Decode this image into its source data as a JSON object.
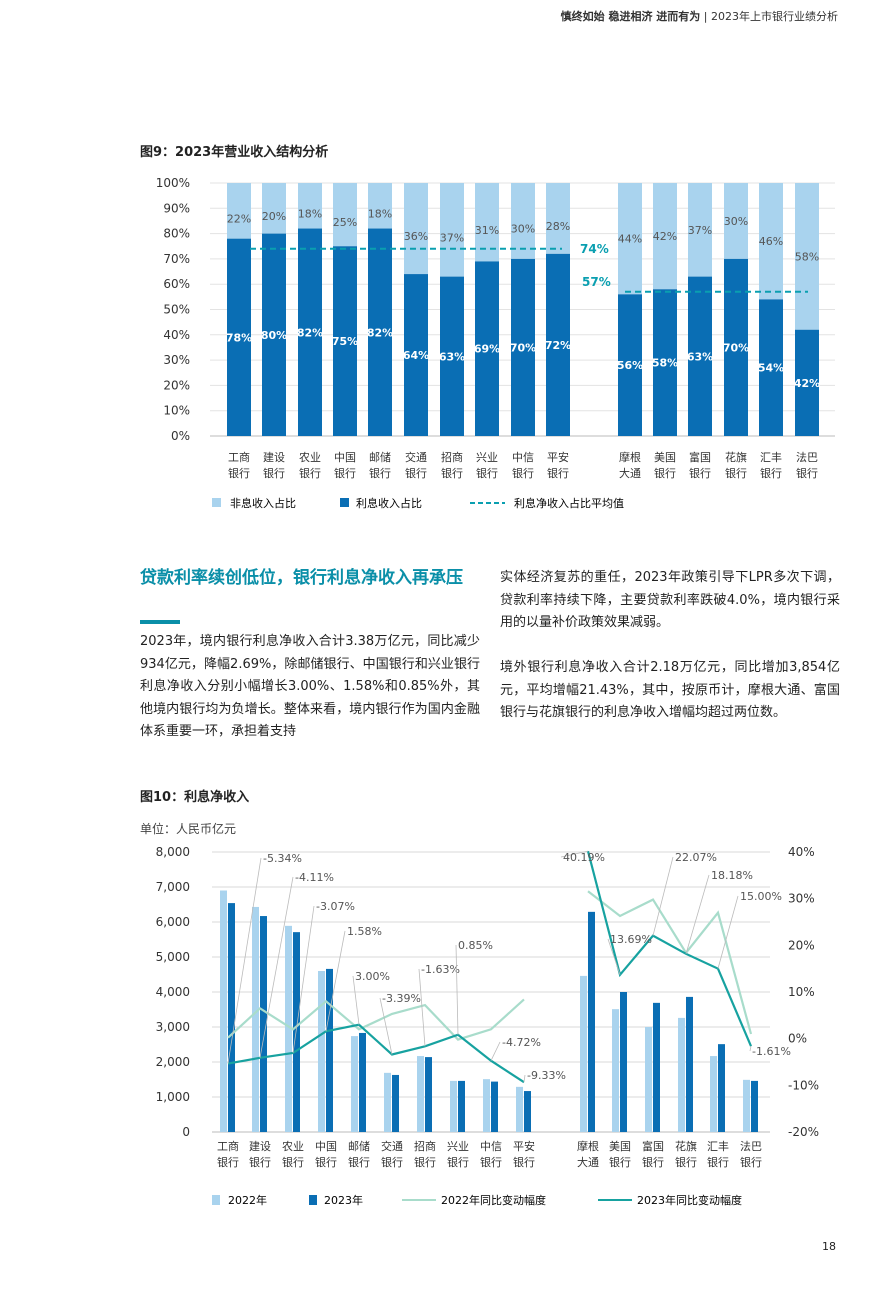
{
  "header": {
    "tagline": "慎终如始 稳进相济 进而有为",
    "divider": "|",
    "subtitle": "2023年上市银行业绩分析"
  },
  "fig9": {
    "title": "图9：2023年营业收入结构分析"
  },
  "section": {
    "heading": "贷款利率续创低位，银行利息净收入再承压",
    "para1": "2023年，境内银行利息净收入合计3.38万亿元，同比减少934亿元，降幅2.69%，除邮储银行、中国银行和兴业银行利息净收入分别小幅增长3.00%、1.58%和0.85%外，其他境内银行均为负增长。整体来看，境内银行作为国内金融体系重要一环，承担着支持",
    "para2": "实体经济复苏的重任，2023年政策引导下LPR多次下调，贷款利率持续下降，主要贷款利率跌破4.0%，境内银行采用的以量补价政策效果减弱。",
    "para3": "境外银行利息净收入合计2.18万亿元，同比增加3,854亿元，平均增幅21.43%，其中，按原币计，摩根大通、富国银行与花旗银行的利息净收入增幅均超过两位数。"
  },
  "fig10": {
    "title": "图10：利息净收入",
    "unit": "单位：人民币亿元"
  },
  "page_number": "18",
  "colors": {
    "light": "#a9d3ee",
    "dark": "#0a6eb4",
    "teal": "#0a9fb0",
    "line2022": "#a8dccb",
    "line2023": "#17a2a0",
    "heading": "#0a8fa8"
  },
  "chart_data": [
    {
      "type": "bar",
      "stacked": true,
      "title": "图9：2023年营业收入结构分析",
      "categories": [
        "工商\n银行",
        "建设\n银行",
        "农业\n银行",
        "中国\n银行",
        "邮储\n银行",
        "交通\n银行",
        "招商\n银行",
        "兴业\n银行",
        "中信\n银行",
        "平安\n银行",
        "摩根\n大通",
        "美国\n银行",
        "富国\n银行",
        "花旗\n银行",
        "汇丰\n银行",
        "法巴\n银行"
      ],
      "series": [
        {
          "name": "利息收入占比",
          "values": [
            78,
            80,
            82,
            75,
            82,
            64,
            63,
            69,
            70,
            72,
            56,
            58,
            63,
            70,
            54,
            42
          ]
        },
        {
          "name": "非息收入占比",
          "values": [
            22,
            20,
            18,
            25,
            18,
            36,
            37,
            31,
            30,
            28,
            44,
            42,
            37,
            30,
            46,
            58
          ]
        }
      ],
      "avg_line": {
        "name": "利息净收入占比平均值",
        "domestic": 74,
        "foreign": 57,
        "labels": [
          "74%",
          "57%"
        ]
      },
      "yticks": [
        "0%",
        "10%",
        "20%",
        "30%",
        "40%",
        "50%",
        "60%",
        "70%",
        "80%",
        "90%",
        "100%"
      ],
      "ylim": [
        0,
        100
      ],
      "grid": true,
      "legend": "bottom-left"
    },
    {
      "type": "bar+line",
      "title": "图10：利息净收入",
      "unit": "单位：人民币亿元",
      "categories": [
        "工商\n银行",
        "建设\n银行",
        "农业\n银行",
        "中国\n银行",
        "邮储\n银行",
        "交通\n银行",
        "招商\n银行",
        "兴业\n银行",
        "中信\n银行",
        "平安\n银行",
        "摩根\n大通",
        "美国\n银行",
        "富国\n银行",
        "花旗\n银行",
        "汇丰\n银行",
        "法巴\n银行"
      ],
      "bars": [
        {
          "name": "2022年",
          "values": [
            6900,
            6430,
            5890,
            4600,
            2740,
            1690,
            2170,
            1460,
            1510,
            1290,
            4460,
            3510,
            3000,
            3260,
            2170,
            1490
          ]
        },
        {
          "name": "2023年",
          "values": [
            6540,
            6170,
            5710,
            4660,
            2830,
            1630,
            2140,
            1460,
            1440,
            1170,
            6290,
            4000,
            3690,
            3860,
            2510,
            1460
          ]
        }
      ],
      "lines": [
        {
          "name": "2022年同比变动幅度",
          "values": [
            0.2,
            6.5,
            2.0,
            8.0,
            2.0,
            5.3,
            7.2,
            -0.2,
            2.0,
            8.4,
            31.6,
            26.3,
            29.8,
            18.4,
            27.0,
            1.0
          ]
        },
        {
          "name": "2023年同比变动幅度",
          "values": [
            -5.34,
            -4.11,
            -3.07,
            1.58,
            3.0,
            -3.39,
            -1.63,
            0.85,
            -4.72,
            -9.33,
            40.19,
            13.69,
            22.07,
            18.18,
            15.0,
            -1.61
          ],
          "labels": [
            "-5.34%",
            "-4.11%",
            "-3.07%",
            "1.58%",
            "3.00%",
            "-3.39%",
            "-1.63%",
            "0.85%",
            "-4.72%",
            "-9.33%",
            "40.19%",
            "13.69%",
            "22.07%",
            "18.18%",
            "15.00%",
            "-1.61%"
          ]
        }
      ],
      "yticks_left": [
        "0",
        "1,000",
        "2,000",
        "3,000",
        "4,000",
        "5,000",
        "6,000",
        "7,000",
        "8,000"
      ],
      "yticks_right": [
        "-20%",
        "-10%",
        "0%",
        "10%",
        "20%",
        "30%",
        "40%"
      ],
      "ylim_left": [
        0,
        8000
      ],
      "ylim_right": [
        -20,
        40
      ],
      "grid": true,
      "legend": "bottom"
    }
  ]
}
